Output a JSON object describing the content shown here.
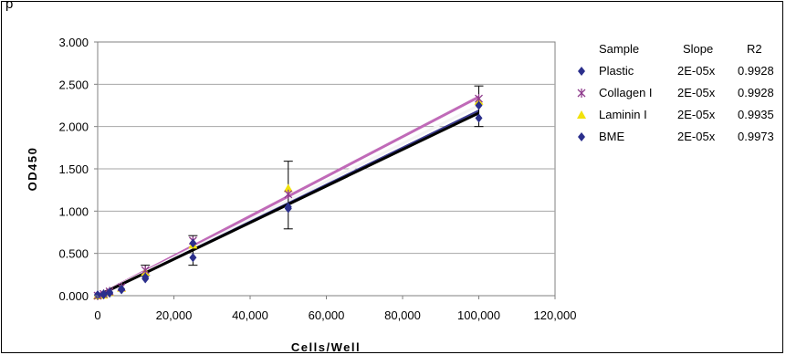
{
  "figure_label": "p",
  "legend": {
    "headers": {
      "sample": "Sample",
      "slope": "Slope",
      "r2": "R2"
    },
    "entries": [
      {
        "name": "Plastic",
        "slope": "2E-05x",
        "r2": "0.9928",
        "marker": "diamond",
        "color": "#2b2f8c"
      },
      {
        "name": "Collagen I",
        "slope": "2E-05x",
        "r2": "0.9928",
        "marker": "asterisk",
        "color": "#8e3a8c"
      },
      {
        "name": "Laminin I",
        "slope": "2E-05x",
        "r2": "0.9935",
        "marker": "triangle",
        "color": "#f2e20a"
      },
      {
        "name": "BME",
        "slope": "2E-05x",
        "r2": "0.9973",
        "marker": "diamond",
        "color": "#2b2f8c"
      }
    ]
  },
  "chart_data": {
    "type": "scatter",
    "xlabel": "Cells/Well",
    "ylabel": "OD450",
    "xlim": [
      0,
      120000
    ],
    "ylim": [
      0,
      3.0
    ],
    "x_ticks": [
      "0",
      "20,000",
      "40,000",
      "60,000",
      "80,000",
      "100,000",
      "120,000"
    ],
    "y_ticks": [
      "0.000",
      "0.500",
      "1.000",
      "1.500",
      "2.000",
      "2.500",
      "3.000"
    ],
    "grid": "horizontal",
    "legend_position": "right",
    "x": [
      0,
      1563,
      3125,
      6250,
      12500,
      25000,
      50000,
      100000
    ],
    "series": [
      {
        "name": "Plastic",
        "marker": "diamond",
        "color": "#2b2f8c",
        "values": [
          0.01,
          0.02,
          0.04,
          0.07,
          0.2,
          0.45,
          1.03,
          2.1
        ]
      },
      {
        "name": "Collagen I",
        "marker": "asterisk",
        "color": "#8e3a8c",
        "values": [
          0.0,
          0.02,
          0.05,
          0.1,
          0.3,
          0.65,
          1.2,
          2.33
        ]
      },
      {
        "name": "Laminin I",
        "marker": "triangle",
        "color": "#f2e20a",
        "values": [
          0.0,
          0.01,
          0.04,
          0.09,
          0.28,
          0.6,
          1.27,
          2.3
        ]
      },
      {
        "name": "BME",
        "marker": "diamond",
        "color": "#2b2f8c",
        "values": [
          0.01,
          0.01,
          0.03,
          0.08,
          0.22,
          0.62,
          1.05,
          2.25
        ]
      }
    ],
    "error_bars": [
      {
        "x": 12500,
        "low": 0.24,
        "high": 0.36
      },
      {
        "x": 25000,
        "low": 0.36,
        "high": 0.71
      },
      {
        "x": 50000,
        "low": 0.79,
        "high": 1.59
      },
      {
        "x": 100000,
        "low": 2.0,
        "high": 2.48
      }
    ],
    "trendlines": [
      {
        "color": "#c06ab8",
        "x": [
          0,
          100000
        ],
        "y": [
          0.0,
          2.35
        ],
        "width": 3
      },
      {
        "color": "#f3f3f3",
        "x": [
          0,
          100000
        ],
        "y": [
          0.0,
          2.25
        ],
        "width": 3
      },
      {
        "color": "#3a3a8e",
        "x": [
          0,
          100000
        ],
        "y": [
          0.0,
          2.19
        ],
        "width": 2
      },
      {
        "color": "#000000",
        "x": [
          0,
          100000
        ],
        "y": [
          0.0,
          2.16
        ],
        "width": 3
      }
    ]
  }
}
